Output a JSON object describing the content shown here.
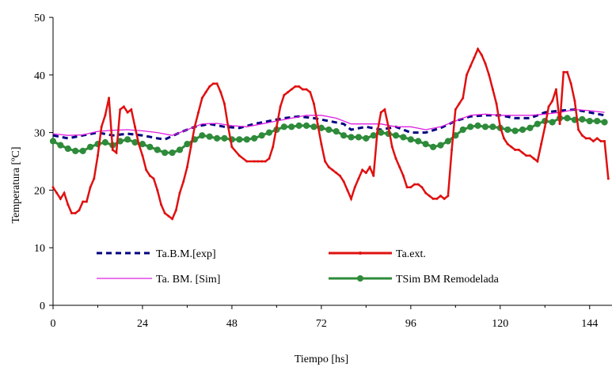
{
  "chart_data": {
    "type": "line",
    "title": "",
    "xlabel": "Tiempo [hs]",
    "ylabel": "Temperatura [ºC]",
    "xlim": [
      0,
      150
    ],
    "ylim": [
      0,
      50
    ],
    "xticks": [
      0,
      24,
      48,
      72,
      96,
      120,
      144
    ],
    "yticks": [
      0,
      10,
      20,
      30,
      40,
      50
    ],
    "grid": false,
    "legend_position": "bottom-center",
    "series": [
      {
        "name": "Ta.B.M.[exp]",
        "color": "#000080",
        "style": "dashed",
        "marker": "none",
        "x": [
          0,
          4,
          8,
          12,
          16,
          20,
          24,
          28,
          30,
          34,
          38,
          42,
          46,
          50,
          54,
          58,
          62,
          66,
          70,
          74,
          78,
          80,
          84,
          88,
          92,
          96,
          100,
          104,
          108,
          112,
          116,
          120,
          124,
          128,
          132,
          136,
          140,
          144,
          148
        ],
        "y": [
          29.5,
          29.0,
          29.5,
          30.0,
          29.5,
          29.8,
          29.5,
          29.0,
          28.8,
          30.0,
          31.0,
          31.5,
          31.0,
          30.8,
          31.5,
          32.0,
          32.5,
          32.8,
          32.5,
          32.0,
          31.5,
          30.5,
          31.0,
          30.5,
          31.0,
          30.0,
          30.0,
          30.8,
          32.0,
          32.8,
          33.0,
          33.0,
          32.5,
          32.5,
          33.5,
          33.8,
          34.0,
          33.5,
          33.0
        ]
      },
      {
        "name": "Ta. BM. [Sim]",
        "color": "#e020e0",
        "style": "solid",
        "marker": "none",
        "x": [
          0,
          4,
          8,
          12,
          16,
          20,
          24,
          28,
          32,
          36,
          40,
          44,
          48,
          52,
          56,
          60,
          64,
          68,
          72,
          76,
          80,
          84,
          88,
          92,
          96,
          100,
          104,
          108,
          112,
          116,
          120,
          124,
          128,
          132,
          136,
          140,
          144,
          148
        ],
        "y": [
          29.8,
          29.5,
          29.6,
          30.2,
          30.4,
          30.5,
          30.3,
          30.0,
          29.5,
          30.5,
          31.5,
          31.6,
          31.2,
          31.0,
          31.5,
          32.0,
          32.5,
          33.0,
          33.0,
          32.5,
          31.5,
          31.5,
          31.5,
          31.0,
          31.0,
          30.5,
          31.0,
          32.0,
          33.0,
          33.2,
          33.0,
          33.0,
          33.0,
          33.2,
          33.5,
          34.0,
          33.8,
          33.5
        ]
      },
      {
        "name": "Ta.ext.",
        "color": "#e01010",
        "style": "solid",
        "marker": "small-dot",
        "x": [
          0,
          1,
          2,
          3,
          4,
          5,
          6,
          7,
          8,
          9,
          10,
          11,
          12,
          13,
          14,
          15,
          16,
          17,
          18,
          19,
          20,
          21,
          22,
          23,
          24,
          25,
          26,
          27,
          28,
          29,
          30,
          31,
          32,
          33,
          34,
          35,
          36,
          37,
          38,
          39,
          40,
          41,
          42,
          43,
          44,
          45,
          46,
          47,
          48,
          50,
          52,
          54,
          55,
          56,
          57,
          58,
          59,
          60,
          61,
          62,
          63,
          64,
          65,
          66,
          67,
          68,
          69,
          70,
          71,
          72,
          73,
          74,
          75,
          76,
          77,
          78,
          79,
          80,
          81,
          82,
          83,
          84,
          85,
          86,
          87,
          88,
          89,
          90,
          91,
          92,
          93,
          94,
          95,
          96,
          97,
          98,
          99,
          100,
          101,
          102,
          103,
          104,
          105,
          106,
          107,
          108,
          109,
          110,
          111,
          112,
          113,
          114,
          115,
          116,
          117,
          118,
          119,
          120,
          121,
          122,
          123,
          124,
          125,
          126,
          127,
          128,
          129,
          130,
          131,
          132,
          133,
          134,
          135,
          136,
          137,
          138,
          139,
          140,
          141,
          142,
          143,
          144,
          145,
          146,
          147,
          148,
          149
        ],
        "y": [
          20.5,
          19.5,
          18.5,
          19.5,
          17.5,
          16.0,
          16.0,
          16.5,
          18.0,
          18.0,
          20.5,
          22.0,
          26.0,
          31.0,
          33.0,
          36.0,
          27.0,
          26.5,
          34.0,
          34.5,
          33.5,
          34.0,
          31.0,
          28.0,
          26.0,
          23.5,
          22.5,
          22.0,
          20.0,
          17.5,
          16.0,
          15.5,
          15.0,
          16.5,
          19.5,
          21.5,
          24.0,
          27.5,
          31.0,
          33.5,
          36.0,
          37.0,
          38.0,
          38.5,
          38.5,
          37.0,
          35.0,
          31.0,
          27.5,
          26.0,
          25.0,
          25.0,
          25.0,
          25.0,
          25.0,
          25.5,
          27.5,
          31.0,
          34.5,
          36.5,
          37.0,
          37.5,
          38.0,
          38.0,
          37.5,
          37.5,
          37.0,
          35.0,
          31.5,
          28.0,
          25.0,
          24.0,
          23.5,
          23.0,
          22.5,
          21.5,
          20.0,
          18.5,
          20.5,
          22.0,
          23.5,
          23.0,
          24.0,
          22.5,
          30.0,
          33.5,
          34.0,
          31.0,
          27.5,
          25.5,
          24.0,
          22.5,
          20.5,
          20.5,
          21.0,
          21.0,
          20.5,
          19.5,
          19.0,
          18.5,
          18.5,
          19.0,
          18.5,
          19.0,
          27.0,
          34.0,
          35.0,
          36.0,
          40.0,
          41.5,
          43.0,
          44.5,
          43.5,
          42.0,
          40.0,
          37.5,
          35.0,
          31.0,
          29.0,
          28.0,
          27.5,
          27.0,
          27.0,
          26.5,
          26.0,
          26.0,
          25.5,
          25.0,
          28.0,
          31.0,
          34.5,
          35.5,
          37.5,
          31.5,
          40.5,
          40.5,
          38.5,
          35.5,
          30.5,
          29.5,
          29.0,
          29.0,
          28.5,
          29.0,
          28.5,
          28.5,
          22.0
        ]
      },
      {
        "name": "TSim BM Remodelada",
        "color": "#2e8b3a",
        "style": "solid",
        "marker": "circle",
        "x": [
          0,
          2,
          4,
          6,
          8,
          10,
          12,
          14,
          16,
          18,
          20,
          22,
          24,
          26,
          28,
          30,
          32,
          34,
          36,
          38,
          40,
          42,
          44,
          46,
          48,
          50,
          52,
          54,
          56,
          58,
          60,
          62,
          64,
          66,
          68,
          70,
          72,
          74,
          76,
          78,
          80,
          82,
          84,
          86,
          88,
          90,
          92,
          94,
          96,
          98,
          100,
          102,
          104,
          106,
          108,
          110,
          112,
          114,
          116,
          118,
          120,
          122,
          124,
          126,
          128,
          130,
          132,
          134,
          136,
          138,
          140,
          142,
          144,
          146,
          148
        ],
        "y": [
          28.5,
          27.8,
          27.2,
          26.8,
          26.8,
          27.5,
          28.0,
          28.3,
          27.8,
          28.5,
          28.8,
          28.3,
          28.0,
          27.5,
          27.0,
          26.5,
          26.5,
          27.0,
          28.0,
          28.8,
          29.5,
          29.3,
          29.0,
          29.0,
          28.8,
          28.8,
          28.8,
          29.0,
          29.5,
          30.0,
          30.5,
          31.0,
          31.0,
          31.2,
          31.2,
          31.0,
          30.8,
          30.5,
          30.2,
          29.5,
          29.2,
          29.2,
          29.0,
          29.5,
          30.0,
          29.8,
          29.5,
          29.2,
          28.8,
          28.5,
          28.0,
          27.5,
          27.8,
          28.5,
          29.5,
          30.5,
          31.0,
          31.2,
          31.0,
          31.0,
          30.8,
          30.5,
          30.3,
          30.5,
          30.8,
          31.5,
          32.0,
          31.8,
          32.5,
          32.5,
          32.2,
          32.3,
          32.0,
          32.0,
          31.8
        ]
      }
    ]
  }
}
